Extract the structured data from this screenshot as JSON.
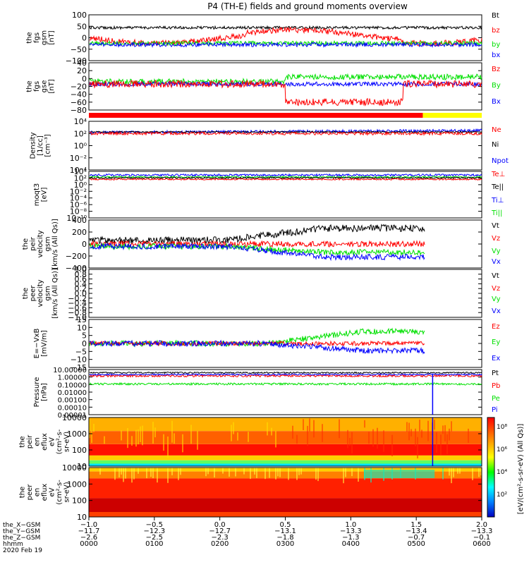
{
  "title": "P4 (TH-E) fields and ground moments overview",
  "colors": {
    "black": "#000000",
    "red": "#ff0000",
    "green": "#00e000",
    "blue": "#0000ff",
    "yellow": "#ffff00"
  },
  "chart_data": [
    {
      "type": "line",
      "panel": "fgs-gsm",
      "ylabel": [
        "the",
        "fgs",
        "gsm",
        "[nT]"
      ],
      "ylim": [
        -100,
        100
      ],
      "yticks": [
        "100",
        "50",
        "0",
        "−50",
        "−100"
      ],
      "series": [
        {
          "name": "Bt",
          "color": "black"
        },
        {
          "name": "bz",
          "color": "red"
        },
        {
          "name": "by",
          "color": "green"
        },
        {
          "name": "bx",
          "color": "blue"
        }
      ]
    },
    {
      "type": "line",
      "panel": "fgs-gse-dsl",
      "ylabel": [
        "the",
        "fgs",
        "gse",
        "[nT]"
      ],
      "ylim": [
        -90,
        40
      ],
      "yticks": [
        "40",
        "20",
        "0",
        "−20",
        "−40",
        "−60",
        "−80"
      ],
      "series": [
        {
          "name": "Bz",
          "color": "red"
        },
        {
          "name": "By",
          "color": "green"
        },
        {
          "name": "Bx",
          "color": "blue"
        }
      ]
    },
    {
      "type": "line",
      "panel": "density",
      "ylabel": [
        "Density",
        "[1/cc]",
        "[cm⁻³]"
      ],
      "yticks": [
        "10⁴",
        "10²",
        "10⁰",
        "10⁻²",
        "10⁻⁴"
      ],
      "series": [
        {
          "name": "Ne",
          "color": "red"
        },
        {
          "name": "Ni",
          "color": "black"
        },
        {
          "name": "Npot",
          "color": "blue"
        }
      ]
    },
    {
      "type": "line",
      "panel": "temperature",
      "ylabel": [
        "moqt3",
        "[eV]"
      ],
      "yticks": [
        "10⁴",
        "10²",
        "10⁰",
        "10⁻²",
        "10⁻⁴",
        "10⁻⁶",
        "10⁻⁸",
        "10⁻¹⁰"
      ],
      "series": [
        {
          "name": "Te⊥",
          "color": "red"
        },
        {
          "name": "Te||",
          "color": "black"
        },
        {
          "name": "Ti⊥",
          "color": "blue"
        },
        {
          "name": "Ti||",
          "color": "green"
        }
      ]
    },
    {
      "type": "line",
      "panel": "peir-velocity",
      "ylabel": [
        "the",
        "peir",
        "velocity",
        "gsm",
        "[km/s (All Qs)]"
      ],
      "ylim": [
        -400,
        400
      ],
      "yticks": [
        "400",
        "200",
        "0",
        "−200",
        "−400"
      ],
      "series": [
        {
          "name": "Vt",
          "color": "black"
        },
        {
          "name": "Vz",
          "color": "red"
        },
        {
          "name": "Vy",
          "color": "green"
        },
        {
          "name": "Vx",
          "color": "blue"
        }
      ]
    },
    {
      "type": "line",
      "panel": "peer-velocity",
      "ylabel": [
        "the",
        "peer",
        "velocity",
        "gsm",
        "[km/s (All Qs)]"
      ],
      "ylim": [
        -1,
        1
      ],
      "yticks": [
        "1.0",
        "0.8",
        "0.6",
        "0.4",
        "0.2",
        "0.0",
        "−0.2",
        "−0.4",
        "−0.6",
        "−0.8",
        "−1.0"
      ],
      "series": [
        {
          "name": "Vt",
          "color": "black"
        },
        {
          "name": "Vz",
          "color": "red"
        },
        {
          "name": "Vy",
          "color": "green"
        },
        {
          "name": "Vx",
          "color": "blue"
        }
      ]
    },
    {
      "type": "line",
      "panel": "efield",
      "ylabel": [
        "E=−VxB",
        "[mV/m]"
      ],
      "ylim": [
        -15,
        15
      ],
      "yticks": [
        "15",
        "10",
        "5",
        "0",
        "−5",
        "−10",
        "−15"
      ],
      "series": [
        {
          "name": "Ez",
          "color": "red"
        },
        {
          "name": "Ey",
          "color": "green"
        },
        {
          "name": "Ex",
          "color": "blue"
        }
      ]
    },
    {
      "type": "line",
      "panel": "pressure",
      "ylabel": [
        "Pressure",
        "[nPa]"
      ],
      "yticks": [
        "10.00000",
        "1.00000",
        "0.10000",
        "0.01000",
        "0.00100",
        "0.00010",
        "0.00001"
      ],
      "series": [
        {
          "name": "Pt",
          "color": "black"
        },
        {
          "name": "Pb",
          "color": "red"
        },
        {
          "name": "Pe",
          "color": "green"
        },
        {
          "name": "Pi",
          "color": "blue"
        }
      ]
    },
    {
      "type": "heatmap",
      "panel": "peir-eflux",
      "ylabel": [
        "the",
        "peir",
        "en",
        "eflux",
        "eV",
        "(cm²-s-",
        "sr-eV)"
      ],
      "yticks": [
        "10000",
        "1000",
        "100",
        "10"
      ]
    },
    {
      "type": "heatmap",
      "panel": "peer-eflux",
      "ylabel": [
        "the",
        "peer",
        "en",
        "eflux",
        "eV",
        "(cm²-s-",
        "sr-eV)"
      ],
      "yticks": [
        "10000",
        "1000",
        "100",
        "10"
      ]
    }
  ],
  "colorbar": {
    "ticks": [
      "10⁸",
      "10⁶",
      "10⁴",
      "10²"
    ],
    "label": "[eV/(cm²-s-sr-eV) (All Qs)]"
  },
  "xaxis": {
    "row_labels": [
      "the_X−GSM",
      "the_Y−GSM",
      "the_Z−GSM",
      "hhmm",
      "2020 Feb 19"
    ],
    "x": [
      "−1.0",
      "−0.5",
      "0.0",
      "0.5",
      "1.0",
      "1.5",
      "2.0"
    ],
    "y": [
      "−11.7",
      "−12.3",
      "−12.7",
      "−13.1",
      "−13.3",
      "−13.4",
      "−13.3"
    ],
    "z": [
      "−2.6",
      "−2.5",
      "−2.3",
      "−1.8",
      "−1.3",
      "−0.7",
      "−0.1"
    ],
    "hhmm": [
      "0000",
      "0100",
      "0200",
      "0300",
      "0400",
      "0500",
      "0600"
    ]
  }
}
